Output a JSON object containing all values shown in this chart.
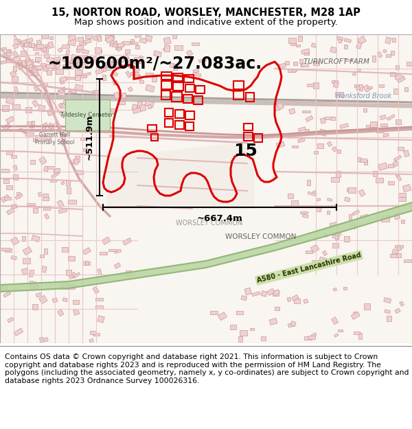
{
  "title_line1": "15, NORTON ROAD, WORSLEY, MANCHESTER, M28 1AP",
  "title_line2": "Map shows position and indicative extent of the property.",
  "area_text": "~109600m²/~27.083ac.",
  "dim_vertical": "~511.9m",
  "dim_horizontal": "~667.4m",
  "label_15": "15",
  "label_turncroft": "TURNCROFT FARM",
  "label_honksford": "Honksford Brook",
  "label_worsley": "WORSLEY COMMON",
  "label_a580": "A580 - East Lancashire Road",
  "footer_text": "Contains OS data © Crown copyright and database right 2021. This information is subject to Crown copyright and database rights 2023 and is reproduced with the permission of HM Land Registry. The polygons (including the associated geometry, namely x, y co-ordinates) are subject to Crown copyright and database rights 2023 Ordnance Survey 100026316.",
  "map_bg": "#f5f0ed",
  "road_color": "#e8c8c8",
  "road_edge": "#d4a8a8",
  "building_fill": "#f2d8d8",
  "building_edge": "#d4a0a0",
  "green_strip": "#b8d4a8",
  "property_red": "#dd0000",
  "text_dark": "#333333",
  "text_gray": "#666666",
  "fig_width": 6.0,
  "fig_height": 6.25,
  "title_fs": 10.5,
  "subtitle_fs": 9.5,
  "area_fs": 17,
  "dim_fs": 9.5,
  "label15_fs": 18,
  "map_label_fs": 7.5,
  "footer_fs": 7.8
}
